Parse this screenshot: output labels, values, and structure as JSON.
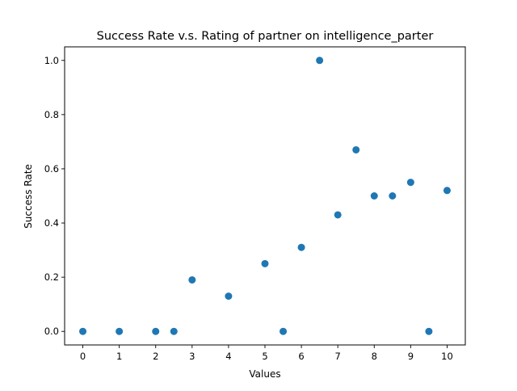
{
  "chart_data": {
    "type": "scatter",
    "title": "Success Rate v.s. Rating of partner on intelligence_parter",
    "xlabel": "Values",
    "ylabel": "Success Rate",
    "xlim": [
      -0.5,
      10.5
    ],
    "ylim": [
      -0.05,
      1.05
    ],
    "xticks": [
      0,
      1,
      2,
      3,
      4,
      5,
      6,
      7,
      8,
      9,
      10
    ],
    "xtick_labels": [
      "0",
      "1",
      "2",
      "3",
      "4",
      "5",
      "6",
      "7",
      "8",
      "9",
      "10"
    ],
    "yticks": [
      0.0,
      0.2,
      0.4,
      0.6,
      0.8,
      1.0
    ],
    "ytick_labels": [
      "0.0",
      "0.2",
      "0.4",
      "0.6",
      "0.8",
      "1.0"
    ],
    "grid": false,
    "marker_color": "#1f77b4",
    "points": [
      {
        "x": 0,
        "y": 0.0
      },
      {
        "x": 1,
        "y": 0.0
      },
      {
        "x": 2,
        "y": 0.0
      },
      {
        "x": 2.5,
        "y": 0.0
      },
      {
        "x": 3,
        "y": 0.19
      },
      {
        "x": 4,
        "y": 0.13
      },
      {
        "x": 5,
        "y": 0.25
      },
      {
        "x": 5.5,
        "y": 0.0
      },
      {
        "x": 6,
        "y": 0.31
      },
      {
        "x": 6.5,
        "y": 1.0
      },
      {
        "x": 7,
        "y": 0.43
      },
      {
        "x": 7.5,
        "y": 0.67
      },
      {
        "x": 8,
        "y": 0.5
      },
      {
        "x": 8.5,
        "y": 0.5
      },
      {
        "x": 9,
        "y": 0.55
      },
      {
        "x": 9.5,
        "y": 0.0
      },
      {
        "x": 10,
        "y": 0.52
      }
    ]
  }
}
